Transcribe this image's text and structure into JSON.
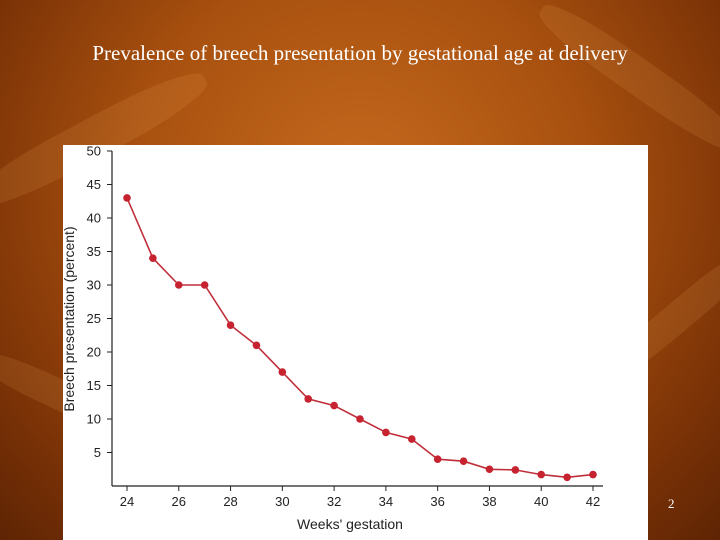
{
  "slide": {
    "title": "Prevalence of breech presentation by gestational age at delivery",
    "page_number": "2"
  },
  "colors": {
    "line": "#bf2f3b",
    "marker": "#c6222f",
    "axis": "#222222"
  },
  "chart_data": {
    "type": "line",
    "title": "",
    "xlabel": "Weeks' gestation",
    "ylabel": "Breech presentation (percent)",
    "xlim": [
      24,
      42
    ],
    "ylim": [
      0,
      50
    ],
    "xticks": [
      24,
      26,
      28,
      30,
      32,
      34,
      36,
      38,
      40,
      42
    ],
    "yticks": [
      5,
      10,
      15,
      20,
      25,
      30,
      35,
      40,
      45,
      50
    ],
    "grid": false,
    "legend": "none",
    "series": [
      {
        "x": [
          24,
          25,
          26,
          27,
          28,
          29,
          30,
          31,
          32,
          33,
          34,
          35,
          36,
          37,
          38,
          39,
          40,
          41,
          42
        ],
        "y": [
          43,
          34,
          30,
          30,
          24,
          21,
          17,
          13,
          12,
          10,
          8,
          7,
          4,
          3.7,
          2.5,
          2.4,
          1.7,
          1.3,
          1.7
        ]
      }
    ]
  }
}
